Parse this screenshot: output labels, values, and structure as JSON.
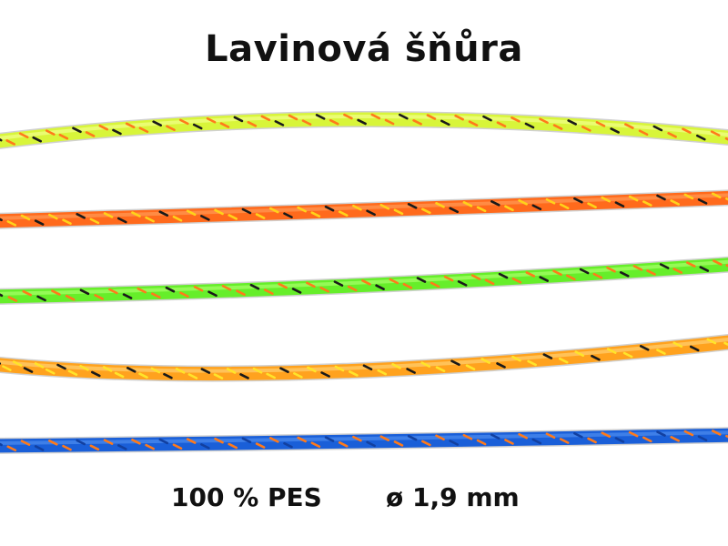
{
  "title": "Lavinová šňůra",
  "material": "100 % PES",
  "diameter": "ø 1,9 mm",
  "ropes": [
    {
      "name": "neon-yellow",
      "base": "#d8f53a",
      "highlight": "#f2ff8a",
      "dash1": "#ff7a1a",
      "dash2": "#1a1a1a"
    },
    {
      "name": "orange",
      "base": "#ff6a1c",
      "highlight": "#ff9a55",
      "dash1": "#ffd21a",
      "dash2": "#1a1a1a"
    },
    {
      "name": "neon-green",
      "base": "#66ee2a",
      "highlight": "#a8ff6a",
      "dash1": "#ff7a1a",
      "dash2": "#1a1a1a"
    },
    {
      "name": "light-orange",
      "base": "#ffa21e",
      "highlight": "#ffd070",
      "dash1": "#ffe42a",
      "dash2": "#1a1a1a"
    },
    {
      "name": "blue",
      "base": "#1a5fd8",
      "highlight": "#4f8df0",
      "dash1": "#ff7a1a",
      "dash2": "#1240a0"
    }
  ]
}
